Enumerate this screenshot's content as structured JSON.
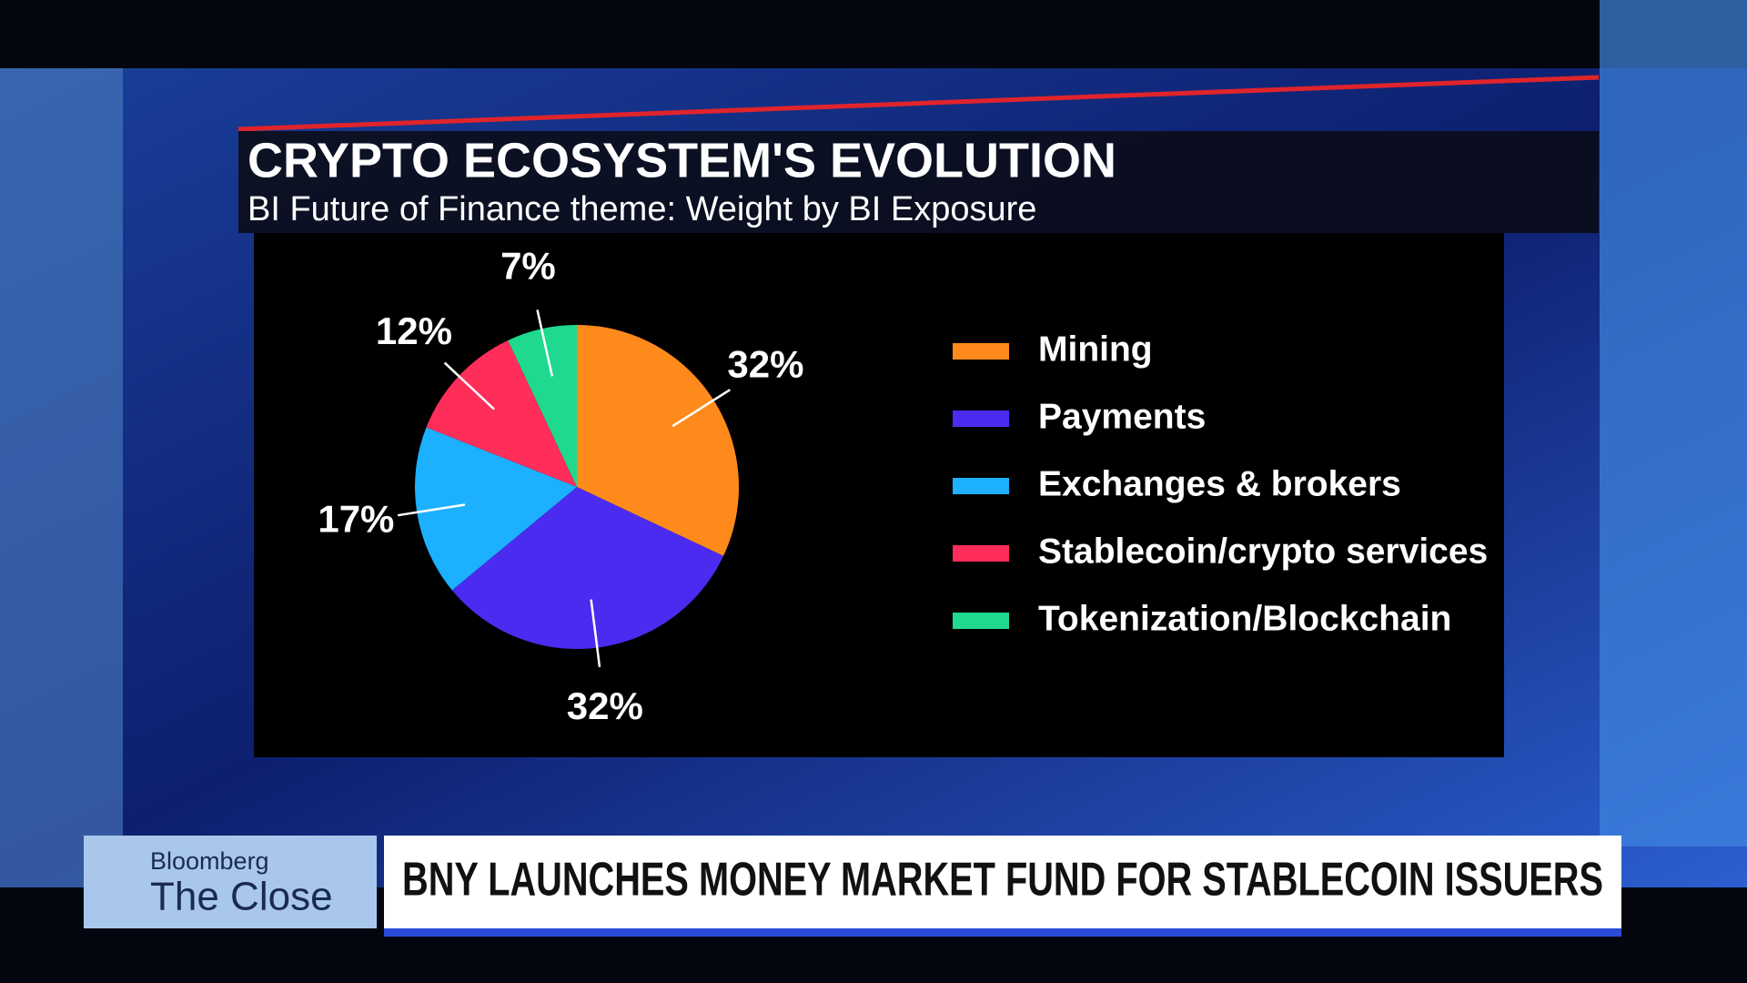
{
  "chart_data": {
    "type": "pie",
    "title": "CRYPTO ECOSYSTEM'S EVOLUTION",
    "subtitle": "BI Future of Finance theme: Weight by BI Exposure",
    "categories": [
      "Mining",
      "Payments",
      "Exchanges & brokers",
      "Stablecoin/crypto services",
      "Tokenization/Blockchain"
    ],
    "values": [
      32,
      32,
      17,
      12,
      7
    ],
    "value_labels": [
      "32%",
      "32%",
      "17%",
      "12%",
      "7%"
    ],
    "colors": [
      "#ff8a1c",
      "#4b2bf0",
      "#1cb0ff",
      "#ff2d5a",
      "#1fd98e"
    ],
    "legend": "right"
  },
  "lower_third": {
    "brand": "Bloomberg",
    "show": "The Close",
    "headline": "BNY LAUNCHES MONEY MARKET FUND FOR STABLECOIN ISSUERS"
  }
}
